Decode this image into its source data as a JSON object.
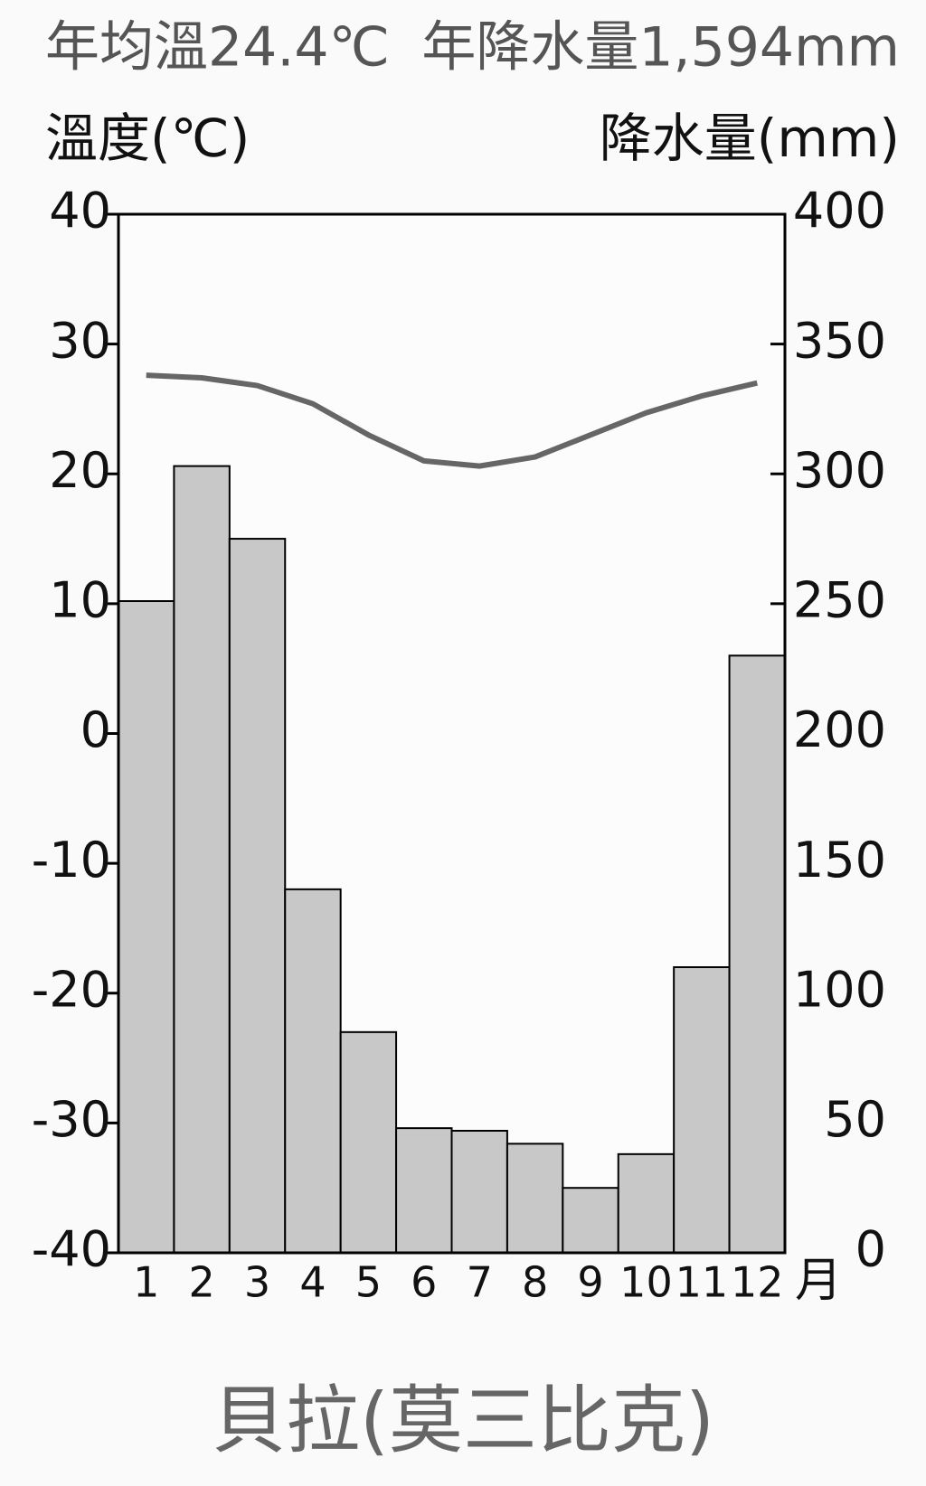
{
  "chart_data": {
    "type": "climate",
    "title_temp": "年均溫24.4℃",
    "title_precip": "年降水量1,594mm",
    "y_label": "溫度(℃)",
    "y2_label": "降水量(mm)",
    "x_unit": "月",
    "caption": "貝拉(莫三比克)",
    "categories": [
      "1",
      "2",
      "3",
      "4",
      "5",
      "6",
      "7",
      "8",
      "9",
      "10",
      "11",
      "12"
    ],
    "series": [
      {
        "name": "降水量",
        "type": "bar",
        "axis": "y2",
        "color": "#c8c8c8",
        "values": [
          251,
          303,
          275,
          140,
          85,
          48,
          47,
          42,
          25,
          38,
          110,
          230
        ]
      },
      {
        "name": "溫度",
        "type": "line",
        "axis": "y",
        "color": "#666666",
        "values": [
          27.6,
          27.4,
          26.8,
          25.4,
          23.0,
          21.0,
          20.6,
          21.3,
          23.0,
          24.7,
          26.0,
          27.0
        ]
      }
    ],
    "ylim": [
      -40,
      40
    ],
    "yticks": [
      -40,
      -30,
      -20,
      -10,
      0,
      10,
      20,
      30,
      40
    ],
    "y2lim": [
      0,
      400
    ],
    "y2ticks": [
      0,
      50,
      100,
      150,
      200,
      250,
      300,
      350,
      400
    ]
  }
}
